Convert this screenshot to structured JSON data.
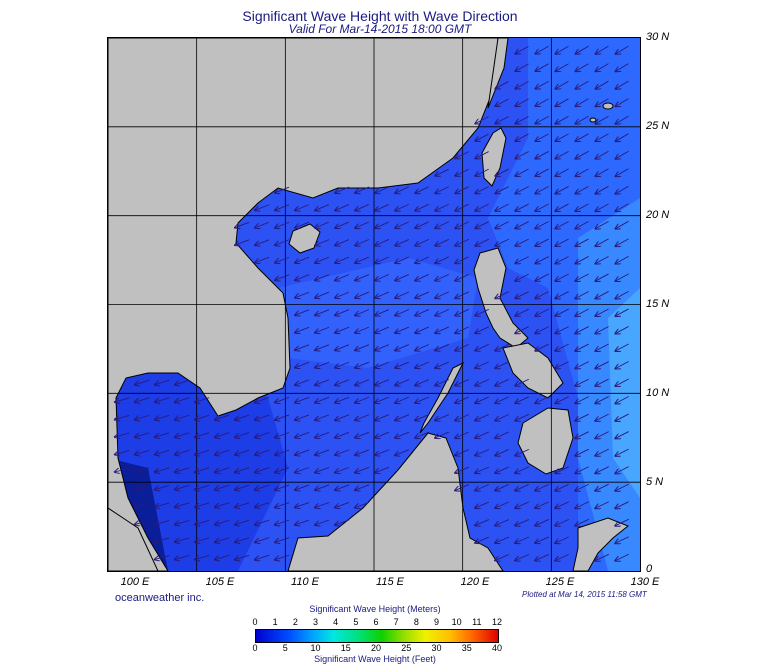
{
  "header": {
    "title": "Significant Wave Height with Wave Direction",
    "subtitle": "Valid For Mar-14-2015 18:00 GMT"
  },
  "map": {
    "lon_range": [
      100,
      130
    ],
    "lat_range": [
      0,
      30
    ],
    "grid_step_deg": 5,
    "lat_labels": [
      "30 N",
      "25 N",
      "20 N",
      "15 N",
      "10 N",
      "5 N",
      "0"
    ],
    "lon_labels": [
      "100 E",
      "105 E",
      "110 E",
      "115 E",
      "120 E",
      "125 E",
      "130 E"
    ],
    "land_color": "#c0c0c0",
    "coast_color": "#000000",
    "arrow_color": "#2a1a7a",
    "dominant_wave_direction": "northeast swell (arrows point toward southwest)"
  },
  "footer": {
    "credit": "oceanweather inc.",
    "plotted": "Plotted at Mar 14, 2015 11:58 GMT"
  },
  "colorbar": {
    "title_meters": "Significant Wave Height (Meters)",
    "title_feet": "Significant Wave Height (Feet)",
    "meter_ticks": [
      "0",
      "1",
      "2",
      "3",
      "4",
      "5",
      "6",
      "7",
      "8",
      "9",
      "10",
      "11",
      "12"
    ],
    "feet_ticks": [
      "0",
      "5",
      "10",
      "15",
      "20",
      "25",
      "30",
      "35",
      "40"
    ],
    "colors": [
      "#0000d0",
      "#0050ff",
      "#00a8ff",
      "#00e8e0",
      "#00e080",
      "#10d000",
      "#a0e000",
      "#f0f000",
      "#ffc000",
      "#ff6000",
      "#e00000"
    ]
  }
}
